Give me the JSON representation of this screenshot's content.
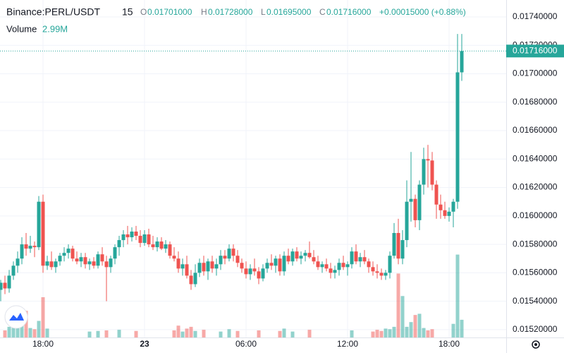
{
  "header": {
    "symbol": "Binance:PERL/USDT",
    "interval": "15",
    "ohlc": [
      {
        "label": "O",
        "text": "0.01701000"
      },
      {
        "label": "H",
        "text": "0.01728000"
      },
      {
        "label": "L",
        "text": "0.01695000"
      },
      {
        "label": "C",
        "text": "0.01716000"
      }
    ],
    "change": "+0.00015000 (+0.88%)",
    "volume_title": "Volume",
    "volume_value": "2.99M"
  },
  "chart_data": {
    "type": "candlestick",
    "up_color": "#26a69a",
    "down_color": "#ef5350",
    "grid": true,
    "xlim": [
      -0.17,
      119.5
    ],
    "xticks": [
      {
        "value": 10,
        "label": "18:00"
      },
      {
        "value": 34,
        "label": "23"
      },
      {
        "value": 58,
        "label": "06:00"
      },
      {
        "value": 82,
        "label": "12:00"
      },
      {
        "value": 106,
        "label": "18:00"
      }
    ],
    "ylim": [
      0.015145,
      0.017519
    ],
    "yticks": [
      {
        "value": 0.0174,
        "label": "0.01740000"
      },
      {
        "value": 0.0172,
        "label": "0.01720000"
      },
      {
        "value": 0.017,
        "label": "0.01700000"
      },
      {
        "value": 0.0168,
        "label": "0.01680000"
      },
      {
        "value": 0.0166,
        "label": "0.01660000"
      },
      {
        "value": 0.0164,
        "label": "0.01640000"
      },
      {
        "value": 0.0162,
        "label": "0.01620000"
      },
      {
        "value": 0.016,
        "label": "0.01600000"
      },
      {
        "value": 0.0158,
        "label": "0.01580000"
      },
      {
        "value": 0.0156,
        "label": "0.01560000"
      },
      {
        "value": 0.0154,
        "label": "0.01540000"
      },
      {
        "value": 0.0152,
        "label": "0.01520000"
      }
    ],
    "last_price": {
      "value": 0.01716,
      "label": "0.01716000"
    },
    "volume_lim": [
      0,
      57000000
    ],
    "open": [
      0.01548,
      0.01553,
      0.01549,
      0.01558,
      0.01565,
      0.0157,
      0.0158,
      0.01577,
      0.01579,
      0.01578,
      0.0161,
      0.01565,
      0.01568,
      0.01564,
      0.01568,
      0.01572,
      0.01574,
      0.01577,
      0.0157,
      0.01568,
      0.01571,
      0.01566,
      0.01568,
      0.01565,
      0.01573,
      0.01568,
      0.01564,
      0.0157,
      0.01578,
      0.01583,
      0.01587,
      0.01585,
      0.01589,
      0.01586,
      0.01581,
      0.01587,
      0.0158,
      0.01578,
      0.01582,
      0.01577,
      0.0158,
      0.01572,
      0.0157,
      0.01563,
      0.01566,
      0.01558,
      0.01552,
      0.0156,
      0.01567,
      0.01561,
      0.01568,
      0.01563,
      0.01566,
      0.01572,
      0.0157,
      0.01577,
      0.01572,
      0.01567,
      0.01563,
      0.01559,
      0.01563,
      0.01561,
      0.01556,
      0.01563,
      0.01567,
      0.01565,
      0.0157,
      0.01561,
      0.01572,
      0.01568,
      0.01575,
      0.0157,
      0.01572,
      0.01574,
      0.01571,
      0.01568,
      0.01564,
      0.01566,
      0.01563,
      0.0156,
      0.01562,
      0.01567,
      0.01564,
      0.01566,
      0.01575,
      0.01568,
      0.01571,
      0.01568,
      0.01564,
      0.01561,
      0.0156,
      0.01558,
      0.0156,
      0.01572,
      0.01588,
      0.0157,
      0.01583,
      0.0161,
      0.01612,
      0.01597,
      0.01622,
      0.0164,
      0.01639,
      0.01622,
      0.01608,
      0.01604,
      0.016,
      0.01603,
      0.0161,
      0.01701
    ],
    "high": [
      0.01555,
      0.01558,
      0.01562,
      0.01568,
      0.01575,
      0.01585,
      0.01588,
      0.01586,
      0.01582,
      0.01614,
      0.01615,
      0.01572,
      0.01575,
      0.0157,
      0.01574,
      0.01578,
      0.0158,
      0.01579,
      0.01575,
      0.01574,
      0.01574,
      0.0157,
      0.01571,
      0.01575,
      0.01578,
      0.01572,
      0.01572,
      0.0158,
      0.01586,
      0.0159,
      0.01593,
      0.01592,
      0.01593,
      0.0159,
      0.0159,
      0.01591,
      0.01586,
      0.01585,
      0.01585,
      0.01583,
      0.01582,
      0.01578,
      0.01575,
      0.0157,
      0.01572,
      0.01562,
      0.01566,
      0.0157,
      0.01572,
      0.0157,
      0.01572,
      0.0157,
      0.01576,
      0.01576,
      0.0158,
      0.0158,
      0.01576,
      0.0157,
      0.01568,
      0.01566,
      0.0157,
      0.01564,
      0.01566,
      0.0157,
      0.01573,
      0.01572,
      0.01573,
      0.01575,
      0.01577,
      0.01577,
      0.01578,
      0.01575,
      0.01576,
      0.01582,
      0.01576,
      0.01572,
      0.01568,
      0.0157,
      0.01567,
      0.01565,
      0.0157,
      0.01572,
      0.01568,
      0.01578,
      0.0158,
      0.01574,
      0.01576,
      0.0157,
      0.01568,
      0.01566,
      0.01563,
      0.01562,
      0.01575,
      0.01595,
      0.01598,
      0.0159,
      0.01625,
      0.01645,
      0.01615,
      0.01625,
      0.01648,
      0.0165,
      0.01645,
      0.01625,
      0.01615,
      0.0161,
      0.01606,
      0.01612,
      0.01728,
      0.01728
    ],
    "low": [
      0.0154,
      0.01545,
      0.01546,
      0.01555,
      0.0156,
      0.01566,
      0.01572,
      0.01574,
      0.01571,
      0.01576,
      0.0156,
      0.01562,
      0.01562,
      0.0156,
      0.01565,
      0.01568,
      0.0157,
      0.01568,
      0.01566,
      0.01564,
      0.01563,
      0.01562,
      0.01563,
      0.01563,
      0.01565,
      0.0154,
      0.0156,
      0.01566,
      0.01572,
      0.01578,
      0.0158,
      0.01582,
      0.01583,
      0.01578,
      0.01579,
      0.01578,
      0.01576,
      0.01575,
      0.01576,
      0.01574,
      0.0157,
      0.01568,
      0.0156,
      0.01558,
      0.01556,
      0.01548,
      0.0155,
      0.01557,
      0.01558,
      0.01555,
      0.0156,
      0.01558,
      0.01562,
      0.01566,
      0.01568,
      0.01568,
      0.01564,
      0.0156,
      0.01556,
      0.01555,
      0.01558,
      0.01552,
      0.01554,
      0.0156,
      0.01562,
      0.0156,
      0.01558,
      0.01558,
      0.01566,
      0.01565,
      0.01568,
      0.01566,
      0.01568,
      0.0157,
      0.01566,
      0.01562,
      0.0156,
      0.01561,
      0.01556,
      0.01556,
      0.01558,
      0.01562,
      0.01558,
      0.01563,
      0.01566,
      0.01564,
      0.01566,
      0.0156,
      0.01558,
      0.01556,
      0.01555,
      0.01555,
      0.01556,
      0.0157,
      0.01566,
      0.01566,
      0.01578,
      0.01596,
      0.01592,
      0.0159,
      0.01615,
      0.0162,
      0.01618,
      0.01598,
      0.01598,
      0.01598,
      0.01596,
      0.01592,
      0.01605,
      0.01695
    ],
    "close": [
      0.01553,
      0.01549,
      0.01558,
      0.01565,
      0.0157,
      0.0158,
      0.01577,
      0.01579,
      0.01578,
      0.0161,
      0.01565,
      0.01568,
      0.01564,
      0.01568,
      0.01572,
      0.01574,
      0.01577,
      0.0157,
      0.01568,
      0.01571,
      0.01566,
      0.01568,
      0.01565,
      0.01573,
      0.01568,
      0.01564,
      0.0157,
      0.01578,
      0.01583,
      0.01587,
      0.01585,
      0.01589,
      0.01586,
      0.01581,
      0.01587,
      0.0158,
      0.01578,
      0.01582,
      0.01577,
      0.0158,
      0.01572,
      0.0157,
      0.01563,
      0.01566,
      0.01558,
      0.01552,
      0.0156,
      0.01567,
      0.01561,
      0.01568,
      0.01563,
      0.01566,
      0.01572,
      0.0157,
      0.01577,
      0.01572,
      0.01567,
      0.01563,
      0.01559,
      0.01563,
      0.01561,
      0.01556,
      0.01563,
      0.01567,
      0.01565,
      0.0157,
      0.01561,
      0.01572,
      0.01568,
      0.01575,
      0.0157,
      0.01572,
      0.01574,
      0.01571,
      0.01568,
      0.01564,
      0.01566,
      0.01563,
      0.0156,
      0.01562,
      0.01567,
      0.01564,
      0.01566,
      0.01575,
      0.01568,
      0.01571,
      0.01568,
      0.01564,
      0.01561,
      0.0156,
      0.01558,
      0.0156,
      0.01572,
      0.01588,
      0.0157,
      0.01583,
      0.0161,
      0.01612,
      0.01597,
      0.01622,
      0.0164,
      0.01639,
      0.01622,
      0.01608,
      0.01604,
      0.016,
      0.01603,
      0.0161,
      0.01701,
      0.01716
    ],
    "volume": [
      900000,
      1200000,
      1800000,
      2200000,
      2600000,
      3200000,
      4500000,
      1600000,
      1400000,
      2800000,
      6800000,
      1500000,
      900000,
      700000,
      600000,
      800000,
      500000,
      900000,
      700000,
      600000,
      800000,
      1000000,
      700000,
      1100000,
      600000,
      1200000,
      700000,
      600000,
      1300000,
      900000,
      600000,
      800000,
      1100000,
      600000,
      900000,
      700000,
      500000,
      800000,
      600000,
      700000,
      900000,
      1200000,
      2000000,
      1000000,
      1500000,
      1800000,
      1100000,
      800000,
      1300000,
      700000,
      900000,
      600000,
      1000000,
      800000,
      1400000,
      900000,
      1100000,
      700000,
      600000,
      900000,
      700000,
      1200000,
      800000,
      600000,
      900000,
      700000,
      1100000,
      1500000,
      800000,
      1000000,
      700000,
      600000,
      900000,
      1300000,
      800000,
      700000,
      600000,
      500000,
      800000,
      700000,
      600000,
      900000,
      700000,
      1200000,
      900000,
      600000,
      700000,
      800000,
      1000000,
      1300000,
      1100000,
      1500000,
      1400000,
      1800000,
      10800000,
      7000000,
      1800000,
      2600000,
      3800000,
      4000000,
      1600000,
      1200000,
      1400000,
      900000,
      700000,
      600000,
      500000,
      2300000,
      14000000,
      2990000
    ]
  }
}
